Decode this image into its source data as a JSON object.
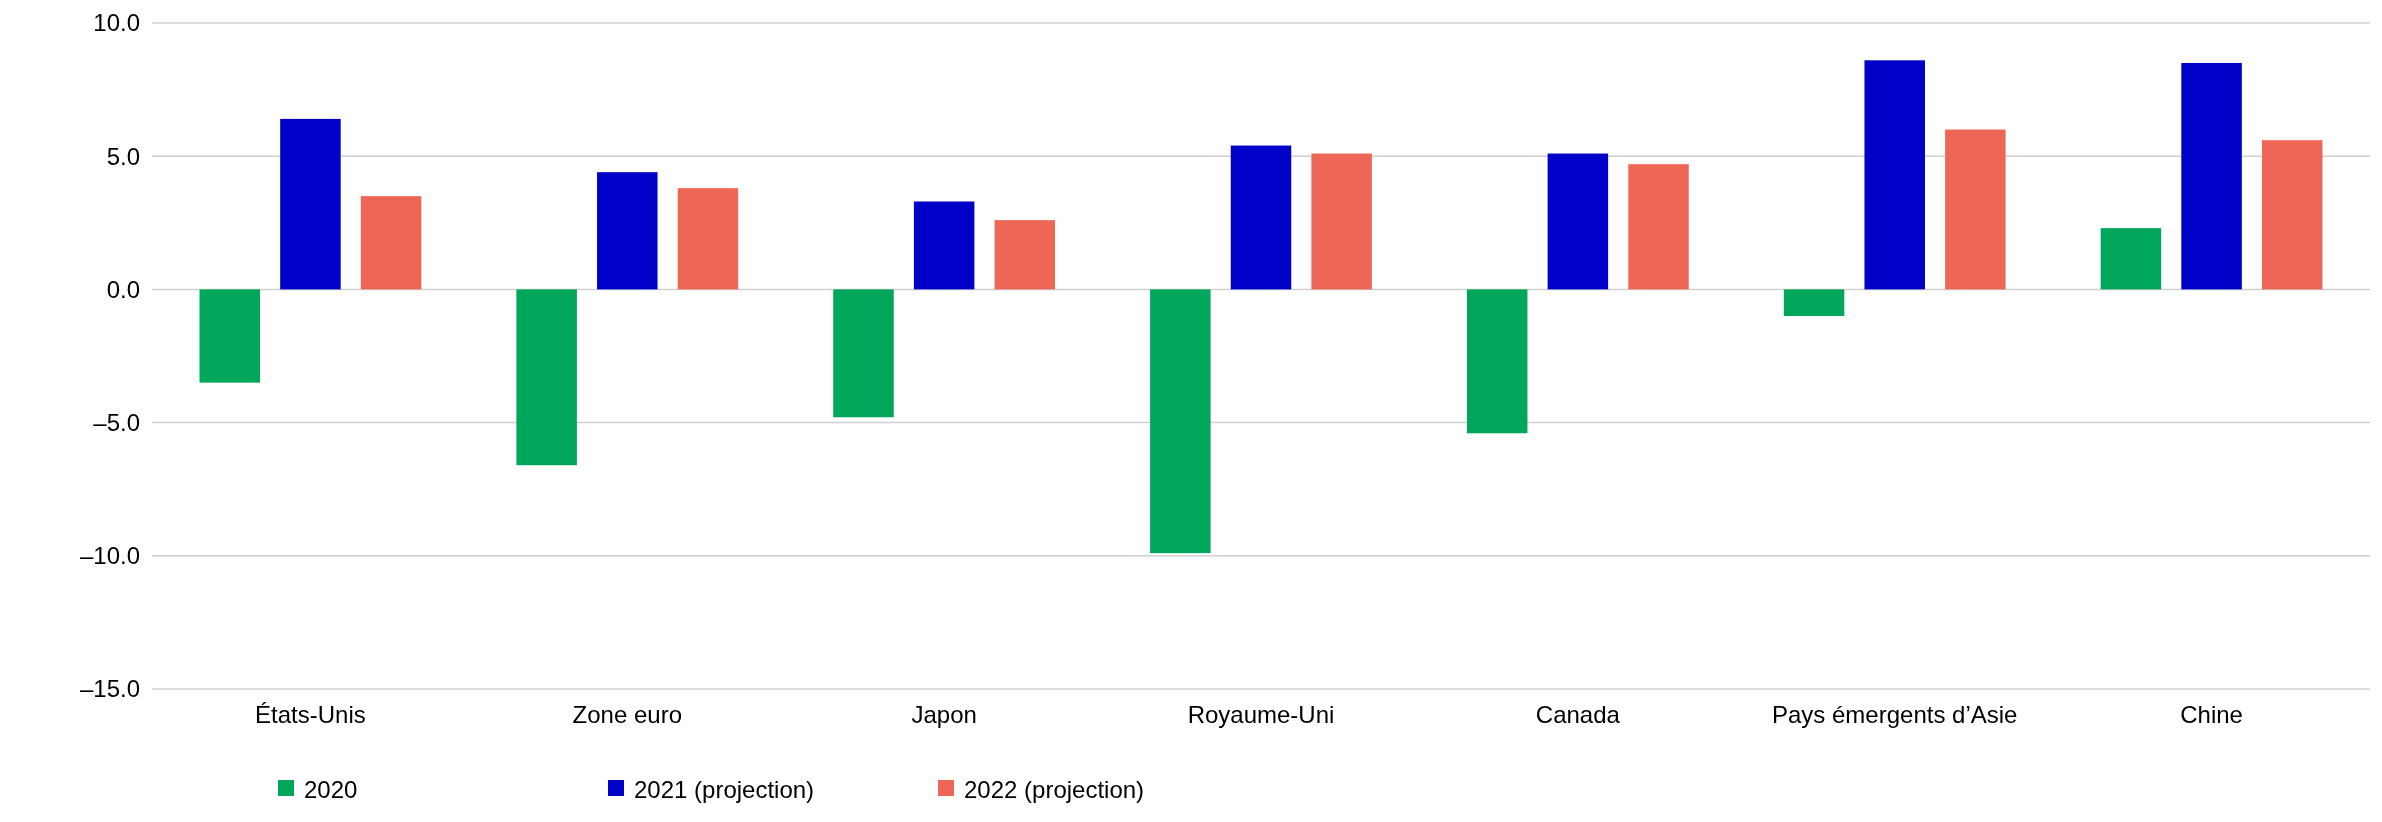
{
  "chart_data": {
    "type": "bar",
    "categories": [
      "États-Unis",
      "Zone euro",
      "Japon",
      "Royaume-Uni",
      "Canada",
      "Pays émergents d’Asie",
      "Chine"
    ],
    "series": [
      {
        "name": "2020",
        "color": "#00a65a",
        "values": [
          -3.5,
          -6.6,
          -4.8,
          -9.9,
          -5.4,
          -1.0,
          2.3
        ]
      },
      {
        "name": "2021 (projection)",
        "color": "#0000c8",
        "values": [
          6.4,
          4.4,
          3.3,
          5.4,
          5.1,
          8.6,
          8.5
        ]
      },
      {
        "name": "2022 (projection)",
        "color": "#ee6655",
        "values": [
          3.5,
          3.8,
          2.6,
          5.1,
          4.7,
          6.0,
          5.6
        ]
      }
    ],
    "ylim": [
      -15,
      10
    ],
    "yticks": [
      {
        "value": -15,
        "label": "–15.0"
      },
      {
        "value": -10,
        "label": "–10.0"
      },
      {
        "value": -5,
        "label": "–5.0"
      },
      {
        "value": 0,
        "label": "0.0"
      },
      {
        "value": 5,
        "label": "5.0"
      },
      {
        "value": 10,
        "label": "10.0"
      }
    ],
    "grid": "y",
    "legend": "bottom"
  }
}
